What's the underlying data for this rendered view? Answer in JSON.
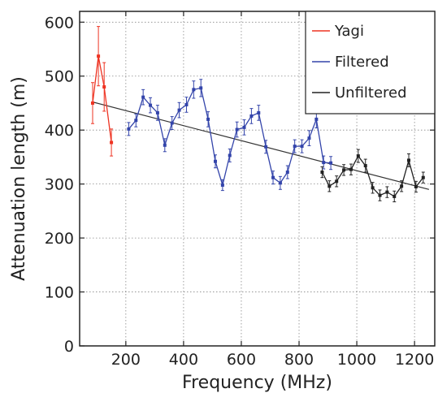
{
  "chart_data": {
    "type": "line",
    "xlabel": "Frequency (MHz)",
    "ylabel": "Attenuation length (m)",
    "xlim": [
      40,
      1270
    ],
    "ylim": [
      0,
      620
    ],
    "x_ticks": [
      200,
      400,
      600,
      800,
      1000,
      1200
    ],
    "y_ticks": [
      0,
      100,
      200,
      300,
      400,
      500,
      600
    ],
    "grid": true,
    "legend_position": "top-right",
    "series": [
      {
        "name": "Yagi",
        "color": "#ee3322",
        "style": "markers+lines+errorbars",
        "x": [
          85,
          105,
          125,
          150
        ],
        "y": [
          450,
          537,
          480,
          377
        ],
        "err": [
          38,
          55,
          45,
          25
        ]
      },
      {
        "name": "Filtered",
        "color": "#3344aa",
        "style": "markers+lines+errorbars",
        "x": [
          210,
          235,
          260,
          285,
          310,
          335,
          360,
          385,
          410,
          435,
          460,
          485,
          510,
          535,
          560,
          585,
          610,
          635,
          660,
          685,
          710,
          735,
          760,
          785,
          810,
          835,
          860,
          885,
          910
        ],
        "y": [
          402,
          418,
          461,
          446,
          432,
          372,
          413,
          437,
          447,
          475,
          478,
          420,
          342,
          298,
          353,
          401,
          405,
          426,
          432,
          369,
          312,
          302,
          322,
          370,
          370,
          385,
          420,
          340,
          339
        ],
        "err": [
          12,
          12,
          14,
          14,
          14,
          12,
          12,
          14,
          14,
          16,
          16,
          14,
          12,
          10,
          12,
          14,
          14,
          14,
          14,
          12,
          12,
          12,
          12,
          12,
          12,
          14,
          16,
          12,
          12
        ]
      },
      {
        "name": "Unfiltered",
        "color": "#222222",
        "style": "markers+lines+errorbars",
        "x": [
          880,
          905,
          930,
          955,
          980,
          1005,
          1030,
          1055,
          1080,
          1105,
          1130,
          1155,
          1180,
          1205,
          1230
        ],
        "y": [
          322,
          296,
          305,
          326,
          327,
          352,
          334,
          293,
          279,
          285,
          277,
          296,
          344,
          295,
          312
        ],
        "err": [
          10,
          10,
          10,
          10,
          10,
          12,
          12,
          10,
          10,
          10,
          10,
          10,
          12,
          10,
          10
        ]
      }
    ],
    "fit_line": {
      "color": "#333333",
      "x": [
        85,
        1250
      ],
      "y": [
        452,
        290
      ]
    }
  }
}
